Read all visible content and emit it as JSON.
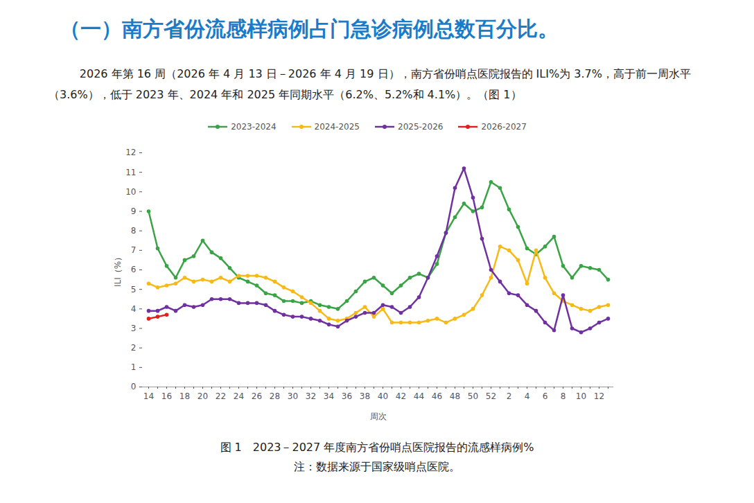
{
  "chart_data": {
    "type": "line",
    "title": "（一）南方省份流感样病例占门急诊病例总数百分比。",
    "subtitle": "2026 年第 16 周（2026 年 4 月 13 日－2026 年 4 月 19 日），南方省份哨点医院报告的 ILI%为 3.7%，高于前一周水平（3.6%），低于 2023 年、2024 年和 2025 年同期水平（6.2%、5.2%和 4.1%）。（图 1）",
    "caption": "图 1　2023－2027 年度南方省份哨点医院报告的流感样病例%",
    "note": "注：数据来源于国家级哨点医院。",
    "x_label": "周次",
    "y_label": "ILI（%）",
    "categories": [
      "14",
      null,
      "16",
      null,
      "18",
      null,
      "20",
      null,
      "22",
      null,
      "24",
      null,
      "26",
      null,
      "28",
      null,
      "30",
      null,
      "32",
      null,
      "34",
      null,
      "36",
      null,
      "38",
      null,
      "40",
      null,
      "42",
      null,
      "44",
      null,
      "46",
      null,
      "48",
      null,
      "50",
      null,
      "52",
      null,
      "2",
      null,
      "4",
      null,
      "6",
      null,
      "8",
      null,
      "10",
      null,
      "12",
      null
    ],
    "series": [
      {
        "name": "2023-2024",
        "color": "#3aa346",
        "values": [
          9.0,
          7.1,
          6.2,
          5.6,
          6.5,
          6.7,
          7.5,
          6.9,
          6.6,
          6.1,
          5.6,
          5.4,
          5.2,
          4.8,
          4.7,
          4.4,
          4.4,
          4.3,
          4.4,
          4.2,
          4.1,
          4.0,
          4.4,
          4.9,
          5.4,
          5.6,
          5.2,
          4.8,
          5.2,
          5.6,
          5.8,
          5.6,
          6.3,
          7.9,
          8.7,
          9.4,
          9.0,
          9.2,
          10.5,
          10.2,
          9.1,
          8.2,
          7.1,
          6.8,
          7.2,
          7.7,
          6.2,
          5.6,
          6.2,
          6.1,
          6.0,
          5.5
        ]
      },
      {
        "name": "2024-2025",
        "color": "#f7b916",
        "values": [
          5.3,
          5.1,
          5.2,
          5.3,
          5.6,
          5.4,
          5.5,
          5.4,
          5.6,
          5.4,
          5.7,
          5.7,
          5.7,
          5.6,
          5.4,
          5.1,
          4.9,
          4.6,
          4.3,
          3.9,
          3.5,
          3.4,
          3.5,
          3.8,
          4.1,
          3.6,
          4.0,
          3.3,
          3.3,
          3.3,
          3.3,
          3.4,
          3.5,
          3.3,
          3.5,
          3.7,
          4.0,
          4.7,
          5.6,
          7.2,
          7.0,
          6.5,
          5.3,
          7.0,
          5.6,
          4.8,
          4.4,
          4.2,
          4.0,
          3.9,
          4.1,
          4.2
        ]
      },
      {
        "name": "2025-2026",
        "color": "#7030a0",
        "values": [
          3.9,
          3.9,
          4.1,
          3.9,
          4.2,
          4.1,
          4.2,
          4.5,
          4.5,
          4.5,
          4.3,
          4.3,
          4.3,
          4.2,
          3.9,
          3.7,
          3.6,
          3.6,
          3.5,
          3.4,
          3.2,
          3.1,
          3.4,
          3.6,
          3.8,
          3.8,
          4.2,
          4.1,
          3.8,
          4.1,
          4.6,
          5.6,
          6.7,
          7.9,
          10.2,
          11.2,
          9.7,
          7.6,
          6.0,
          5.4,
          4.8,
          4.7,
          4.2,
          3.9,
          3.3,
          2.9,
          4.7,
          3.0,
          2.8,
          3.0,
          3.3,
          3.5
        ]
      },
      {
        "name": "2026-2027",
        "color": "#e0201b",
        "values": [
          3.5,
          3.6,
          3.7,
          null,
          null,
          null,
          null,
          null,
          null,
          null,
          null,
          null,
          null,
          null,
          null,
          null,
          null,
          null,
          null,
          null,
          null,
          null,
          null,
          null,
          null,
          null,
          null,
          null,
          null,
          null,
          null,
          null,
          null,
          null,
          null,
          null,
          null,
          null,
          null,
          null,
          null,
          null,
          null,
          null,
          null,
          null,
          null,
          null,
          null,
          null,
          null,
          null
        ]
      }
    ],
    "ylim": [
      0,
      12
    ],
    "yticks": [
      0,
      1,
      2,
      3,
      4,
      5,
      6,
      7,
      8,
      9,
      10,
      11,
      12
    ],
    "grid": false,
    "legend": "top",
    "marker": "circle"
  }
}
